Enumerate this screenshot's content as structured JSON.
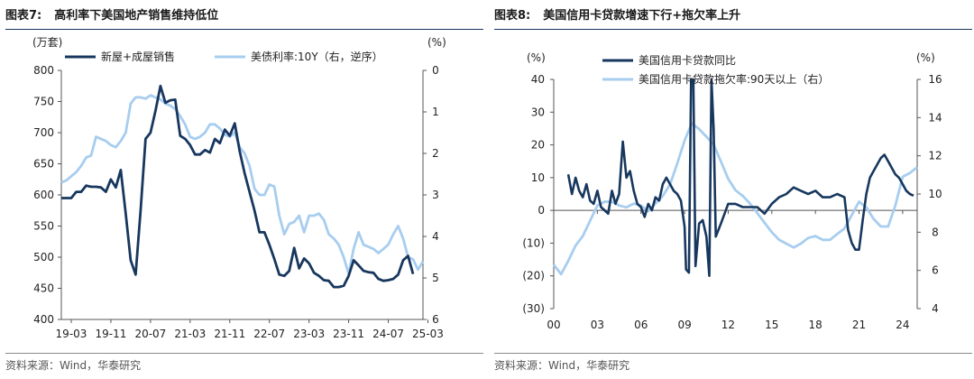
{
  "charts": [
    {
      "title_prefix": "图表7:",
      "title": "高利率下美国地产销售维持低位",
      "source": "资料来源：Wind，华泰研究"
    },
    {
      "title_prefix": "图表8:",
      "title": "美国信用卡贷款增速下行+拖欠率上升",
      "source": "资料来源：Wind，华泰研究"
    }
  ],
  "colors": {
    "dark": "#17375e",
    "light": "#a7cdef",
    "rule": "#17375e"
  },
  "chart_data": [
    {
      "type": "line",
      "left_unit": "(万套)",
      "right_unit": "(%)",
      "ylim_left": [
        400,
        800
      ],
      "left_ticks": [
        "400",
        "450",
        "500",
        "550",
        "600",
        "650",
        "700",
        "750",
        "800"
      ],
      "ylim_right_inverted": [
        0,
        6
      ],
      "right_ticks": [
        "0",
        "1",
        "2",
        "3",
        "4",
        "5",
        "6"
      ],
      "x_ticks": [
        "19-03",
        "19-11",
        "20-07",
        "21-03",
        "21-11",
        "22-07",
        "23-03",
        "23-11",
        "24-07",
        "25-03"
      ],
      "x_start": "2019-01",
      "series": [
        {
          "name": "新屋+成屋销售",
          "axis": "left",
          "color": "#17375e",
          "values": [
            595,
            595,
            595,
            605,
            605,
            615,
            613,
            613,
            612,
            605,
            625,
            612,
            640,
            570,
            495,
            472,
            575,
            690,
            700,
            735,
            775,
            748,
            752,
            753,
            695,
            690,
            680,
            665,
            665,
            672,
            668,
            690,
            683,
            705,
            695,
            715,
            670,
            635,
            605,
            575,
            540,
            540,
            520,
            497,
            472,
            470,
            478,
            515,
            482,
            498,
            490,
            475,
            470,
            463,
            462,
            452,
            452,
            454,
            470,
            495,
            487,
            478,
            476,
            475,
            465,
            462,
            463,
            465,
            472,
            495,
            502,
            473
          ]
        },
        {
          "name": "美债利率:10Y（右，逆序）",
          "axis": "right",
          "color": "#a7cdef",
          "values": [
            2.7,
            2.65,
            2.55,
            2.45,
            2.3,
            2.1,
            2.05,
            1.6,
            1.65,
            1.7,
            1.8,
            1.85,
            1.7,
            1.5,
            0.8,
            0.65,
            0.65,
            0.68,
            0.6,
            0.65,
            0.7,
            0.8,
            0.85,
            0.93,
            1.1,
            1.3,
            1.6,
            1.65,
            1.6,
            1.5,
            1.3,
            1.3,
            1.4,
            1.55,
            1.6,
            1.5,
            1.85,
            2.0,
            2.3,
            2.85,
            3.0,
            3.0,
            2.75,
            2.8,
            3.5,
            3.95,
            3.7,
            3.65,
            3.5,
            3.9,
            3.5,
            3.5,
            3.45,
            3.6,
            3.95,
            4.05,
            4.2,
            4.5,
            4.9,
            4.3,
            3.9,
            4.2,
            4.25,
            4.3,
            4.4,
            4.3,
            4.2,
            3.95,
            3.75,
            4.05,
            4.5,
            4.55,
            4.8,
            4.6
          ]
        }
      ]
    },
    {
      "type": "line",
      "left_unit": "(%)",
      "right_unit": "(%)",
      "ylim_left": [
        -30,
        40
      ],
      "left_ticks": [
        "(30)",
        "(20)",
        "(10)",
        "0",
        "10",
        "20",
        "30",
        "40"
      ],
      "ylim_right": [
        4,
        16
      ],
      "right_ticks": [
        "4",
        "6",
        "8",
        "10",
        "12",
        "14",
        "16"
      ],
      "x_ticks": [
        "00",
        "03",
        "06",
        "09",
        "12",
        "15",
        "18",
        "21",
        "24"
      ],
      "x_range": [
        2000,
        2025
      ],
      "series": [
        {
          "name": "美国信用卡贷款同比",
          "axis": "left",
          "color": "#17375e",
          "points": [
            [
              2001.0,
              11
            ],
            [
              2001.25,
              5
            ],
            [
              2001.5,
              10
            ],
            [
              2001.75,
              6
            ],
            [
              2002.0,
              4
            ],
            [
              2002.25,
              8
            ],
            [
              2002.5,
              3
            ],
            [
              2002.75,
              2
            ],
            [
              2003.0,
              6
            ],
            [
              2003.25,
              1
            ],
            [
              2003.5,
              0
            ],
            [
              2003.75,
              -1
            ],
            [
              2004.0,
              6
            ],
            [
              2004.25,
              2
            ],
            [
              2004.5,
              5
            ],
            [
              2004.75,
              21
            ],
            [
              2005.0,
              10
            ],
            [
              2005.25,
              12
            ],
            [
              2005.5,
              6
            ],
            [
              2005.75,
              2
            ],
            [
              2006.0,
              1
            ],
            [
              2006.25,
              -2
            ],
            [
              2006.5,
              2
            ],
            [
              2006.75,
              0
            ],
            [
              2007.0,
              4
            ],
            [
              2007.25,
              3
            ],
            [
              2007.5,
              8
            ],
            [
              2007.75,
              10
            ],
            [
              2008.0,
              8
            ],
            [
              2008.25,
              6
            ],
            [
              2008.5,
              5
            ],
            [
              2008.75,
              3
            ],
            [
              2009.0,
              -5
            ],
            [
              2009.1,
              -18
            ],
            [
              2009.3,
              -19
            ],
            [
              2009.45,
              40
            ],
            [
              2009.6,
              40
            ],
            [
              2009.75,
              -17
            ],
            [
              2010.0,
              -4
            ],
            [
              2010.25,
              -3
            ],
            [
              2010.5,
              -8
            ],
            [
              2010.7,
              -20
            ],
            [
              2010.85,
              40
            ],
            [
              2011.0,
              25
            ],
            [
              2011.15,
              -8
            ],
            [
              2011.5,
              -4
            ],
            [
              2012.0,
              2
            ],
            [
              2012.5,
              2
            ],
            [
              2013.0,
              1
            ],
            [
              2013.5,
              1
            ],
            [
              2014.0,
              1
            ],
            [
              2014.5,
              -1
            ],
            [
              2015.0,
              2
            ],
            [
              2015.5,
              4
            ],
            [
              2016.0,
              5
            ],
            [
              2016.5,
              7
            ],
            [
              2017.0,
              6
            ],
            [
              2017.5,
              5
            ],
            [
              2018.0,
              6
            ],
            [
              2018.5,
              4
            ],
            [
              2019.0,
              4
            ],
            [
              2019.5,
              5
            ],
            [
              2020.0,
              4
            ],
            [
              2020.25,
              -6
            ],
            [
              2020.5,
              -10
            ],
            [
              2020.75,
              -12
            ],
            [
              2021.0,
              -12
            ],
            [
              2021.25,
              -3
            ],
            [
              2021.5,
              5
            ],
            [
              2021.75,
              10
            ],
            [
              2022.0,
              12
            ],
            [
              2022.25,
              14
            ],
            [
              2022.5,
              16
            ],
            [
              2022.75,
              17
            ],
            [
              2023.0,
              15
            ],
            [
              2023.25,
              13
            ],
            [
              2023.5,
              11
            ],
            [
              2023.75,
              10
            ],
            [
              2024.0,
              8
            ],
            [
              2024.25,
              6
            ],
            [
              2024.5,
              5
            ],
            [
              2024.75,
              4.5
            ]
          ]
        },
        {
          "name": "美国信用卡贷款拖欠率:90天以上（右）",
          "axis": "right",
          "color": "#a7cdef",
          "points": [
            [
              2000.0,
              6.3
            ],
            [
              2000.5,
              5.8
            ],
            [
              2001.0,
              6.5
            ],
            [
              2001.5,
              7.3
            ],
            [
              2002.0,
              7.8
            ],
            [
              2002.5,
              8.6
            ],
            [
              2003.0,
              9.4
            ],
            [
              2003.5,
              9.6
            ],
            [
              2004.0,
              9.6
            ],
            [
              2004.5,
              9.4
            ],
            [
              2005.0,
              9.3
            ],
            [
              2005.5,
              9.5
            ],
            [
              2006.0,
              9.4
            ],
            [
              2006.5,
              9.1
            ],
            [
              2007.0,
              9.5
            ],
            [
              2007.5,
              9.9
            ],
            [
              2008.0,
              10.5
            ],
            [
              2008.5,
              11.6
            ],
            [
              2009.0,
              12.8
            ],
            [
              2009.5,
              13.7
            ],
            [
              2010.0,
              13.4
            ],
            [
              2010.5,
              13.0
            ],
            [
              2011.0,
              12.6
            ],
            [
              2011.5,
              11.7
            ],
            [
              2012.0,
              10.8
            ],
            [
              2012.5,
              10.2
            ],
            [
              2013.0,
              9.9
            ],
            [
              2013.5,
              9.5
            ],
            [
              2014.0,
              9.0
            ],
            [
              2014.5,
              8.5
            ],
            [
              2015.0,
              8.0
            ],
            [
              2015.5,
              7.6
            ],
            [
              2016.0,
              7.4
            ],
            [
              2016.5,
              7.2
            ],
            [
              2017.0,
              7.4
            ],
            [
              2017.5,
              7.7
            ],
            [
              2018.0,
              7.8
            ],
            [
              2018.5,
              7.6
            ],
            [
              2019.0,
              7.6
            ],
            [
              2019.5,
              7.9
            ],
            [
              2020.0,
              8.2
            ],
            [
              2020.5,
              8.9
            ],
            [
              2021.0,
              9.6
            ],
            [
              2021.5,
              9.3
            ],
            [
              2022.0,
              8.7
            ],
            [
              2022.5,
              8.3
            ],
            [
              2023.0,
              8.3
            ],
            [
              2023.5,
              9.4
            ],
            [
              2024.0,
              10.9
            ],
            [
              2024.5,
              11.1
            ],
            [
              2025.0,
              11.4
            ]
          ]
        }
      ]
    }
  ]
}
